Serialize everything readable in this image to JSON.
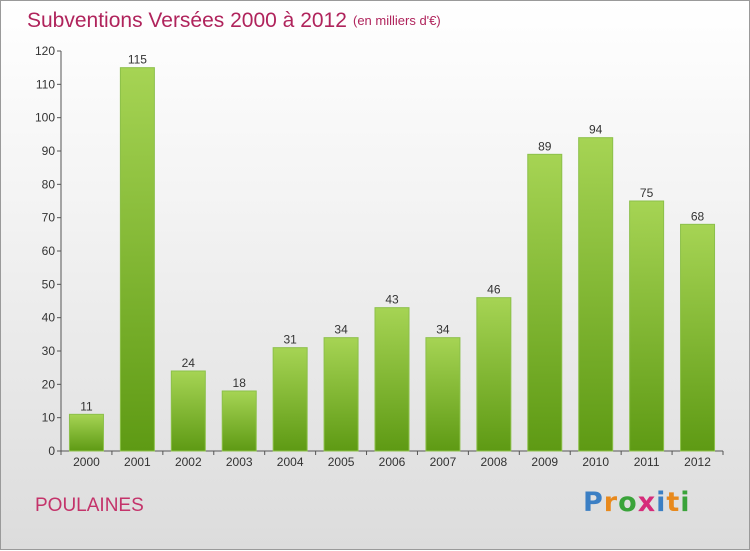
{
  "header": {
    "title": "Subventions Versées 2000 à 2012",
    "subtitle": "(en milliers d'€)"
  },
  "footer": {
    "commune": "POULAINES",
    "logo_letters": [
      "P",
      "r",
      "o",
      "x",
      "i",
      "t",
      "i"
    ]
  },
  "colors": {
    "title": "#b0245c",
    "bar_top": "#a6d454",
    "bar_bottom": "#5e9a14",
    "logo": [
      "#3b7fc4",
      "#e8891c",
      "#3aa33a",
      "#d62b7a",
      "#3b7fc4",
      "#e8891c",
      "#3aa33a"
    ]
  },
  "chart_data": {
    "type": "bar",
    "categories": [
      "2000",
      "2001",
      "2002",
      "2003",
      "2004",
      "2005",
      "2006",
      "2007",
      "2008",
      "2009",
      "2010",
      "2011",
      "2012"
    ],
    "values": [
      11,
      115,
      24,
      18,
      31,
      34,
      43,
      34,
      46,
      89,
      94,
      75,
      68
    ],
    "data_labels": [
      "11",
      "115",
      "24",
      "18",
      "31",
      "34",
      "43",
      "34",
      "46",
      "89",
      "94",
      "75",
      "68"
    ],
    "title": "Subventions Versées 2000 à 2012",
    "subtitle": "(en milliers d'€)",
    "ylim": [
      0,
      120
    ],
    "yticks": [
      0,
      10,
      20,
      30,
      40,
      50,
      60,
      70,
      80,
      90,
      100,
      110,
      120
    ],
    "ytick_labels": [
      "0",
      "10",
      "20",
      "30",
      "40",
      "50",
      "60",
      "70",
      "80",
      "90",
      "100",
      "110",
      "120"
    ],
    "grid": false
  }
}
